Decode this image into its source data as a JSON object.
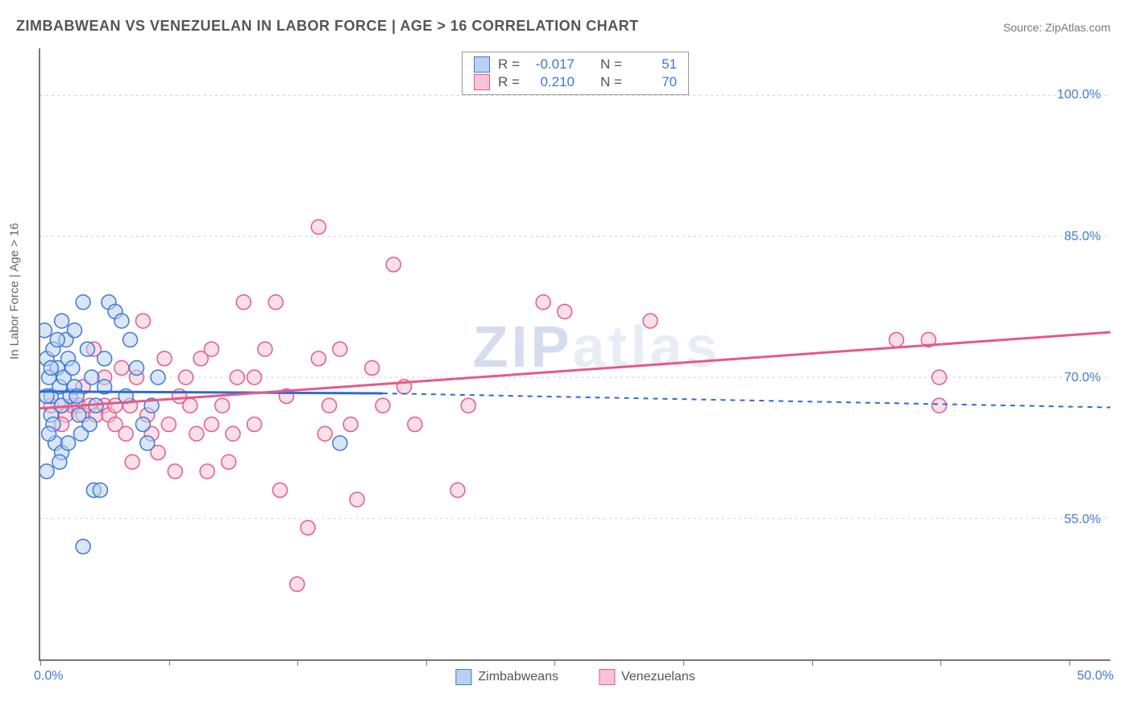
{
  "title": "ZIMBABWEAN VS VENEZUELAN IN LABOR FORCE | AGE > 16 CORRELATION CHART",
  "source_label": "Source: ZipAtlas.com",
  "watermark_main": "ZIP",
  "watermark_sub": "atlas",
  "chart": {
    "type": "scatter",
    "ylabel": "In Labor Force | Age > 16",
    "xlim": [
      0,
      50
    ],
    "ylim": [
      40,
      105
    ],
    "y_gridlines": [
      55,
      70,
      85,
      100
    ],
    "y_tick_labels": [
      "55.0%",
      "70.0%",
      "85.0%",
      "100.0%"
    ],
    "x_tick_positions": [
      0,
      6,
      12,
      18,
      24,
      30,
      36,
      42,
      48
    ],
    "x_left_label": "0.0%",
    "x_right_label": "50.0%",
    "background_color": "#ffffff",
    "grid_color": "#cccccc",
    "marker_radius": 9,
    "marker_stroke_width": 1.5,
    "trend_line_width_solid": 3,
    "trend_line_width_dash": 2,
    "dash_pattern": "6,6",
    "series": [
      {
        "name": "Zimbabweans",
        "fill": "#b9d1f0",
        "stroke": "#3d78d6",
        "fill_opacity": 0.55,
        "R_label": "R =",
        "R_value": "-0.017",
        "N_label": "N =",
        "N_value": "51",
        "trend_color": "#2e6bd1",
        "trend_solid": {
          "x1": 0,
          "y1": 68.5,
          "x2": 16,
          "y2": 68.3
        },
        "trend_dash": {
          "x1": 16,
          "y1": 68.3,
          "x2": 50,
          "y2": 66.8
        },
        "points": [
          {
            "x": 0.2,
            "y": 75
          },
          {
            "x": 0.3,
            "y": 72
          },
          {
            "x": 0.4,
            "y": 70
          },
          {
            "x": 0.5,
            "y": 68
          },
          {
            "x": 0.5,
            "y": 66
          },
          {
            "x": 0.6,
            "y": 65
          },
          {
            "x": 0.7,
            "y": 63
          },
          {
            "x": 0.3,
            "y": 60
          },
          {
            "x": 0.6,
            "y": 73
          },
          {
            "x": 0.8,
            "y": 71
          },
          {
            "x": 0.9,
            "y": 69
          },
          {
            "x": 1.0,
            "y": 67
          },
          {
            "x": 1.2,
            "y": 74
          },
          {
            "x": 1.3,
            "y": 72
          },
          {
            "x": 1.1,
            "y": 70
          },
          {
            "x": 1.4,
            "y": 68
          },
          {
            "x": 1.0,
            "y": 76
          },
          {
            "x": 1.5,
            "y": 71
          },
          {
            "x": 1.6,
            "y": 69
          },
          {
            "x": 1.8,
            "y": 66
          },
          {
            "x": 1.9,
            "y": 64
          },
          {
            "x": 2.0,
            "y": 78
          },
          {
            "x": 2.2,
            "y": 73
          },
          {
            "x": 2.4,
            "y": 70
          },
          {
            "x": 2.6,
            "y": 67
          },
          {
            "x": 2.5,
            "y": 58
          },
          {
            "x": 2.8,
            "y": 58
          },
          {
            "x": 2.0,
            "y": 52
          },
          {
            "x": 3.2,
            "y": 78
          },
          {
            "x": 3.5,
            "y": 77
          },
          {
            "x": 3.8,
            "y": 76
          },
          {
            "x": 3.0,
            "y": 72
          },
          {
            "x": 4.2,
            "y": 74
          },
          {
            "x": 4.5,
            "y": 71
          },
          {
            "x": 4.0,
            "y": 68
          },
          {
            "x": 4.8,
            "y": 65
          },
          {
            "x": 5.0,
            "y": 63
          },
          {
            "x": 5.5,
            "y": 70
          },
          {
            "x": 5.2,
            "y": 67
          },
          {
            "x": 14.0,
            "y": 63
          },
          {
            "x": 0.8,
            "y": 74
          },
          {
            "x": 1.6,
            "y": 75
          },
          {
            "x": 1.0,
            "y": 62
          },
          {
            "x": 0.4,
            "y": 64
          },
          {
            "x": 0.3,
            "y": 68
          },
          {
            "x": 0.5,
            "y": 71
          },
          {
            "x": 1.3,
            "y": 63
          },
          {
            "x": 1.7,
            "y": 68
          },
          {
            "x": 2.3,
            "y": 65
          },
          {
            "x": 3.0,
            "y": 69
          },
          {
            "x": 0.9,
            "y": 61
          }
        ]
      },
      {
        "name": "Venezuelans",
        "fill": "#f6c4d3",
        "stroke": "#e45a8a",
        "fill_opacity": 0.55,
        "R_label": "R =",
        "R_value": "0.210",
        "N_label": "N =",
        "N_value": "70",
        "trend_color": "#e45a8a",
        "trend_solid": {
          "x1": 0,
          "y1": 66.7,
          "x2": 50,
          "y2": 74.8
        },
        "trend_dash": null,
        "points": [
          {
            "x": 0.5,
            "y": 67
          },
          {
            "x": 1.0,
            "y": 67
          },
          {
            "x": 1.2,
            "y": 66
          },
          {
            "x": 1.5,
            "y": 67
          },
          {
            "x": 1.8,
            "y": 67
          },
          {
            "x": 2.0,
            "y": 66
          },
          {
            "x": 2.3,
            "y": 67
          },
          {
            "x": 2.6,
            "y": 66
          },
          {
            "x": 3.0,
            "y": 67
          },
          {
            "x": 3.2,
            "y": 66
          },
          {
            "x": 3.5,
            "y": 67
          },
          {
            "x": 3.0,
            "y": 70
          },
          {
            "x": 3.5,
            "y": 65
          },
          {
            "x": 4.0,
            "y": 64
          },
          {
            "x": 4.2,
            "y": 67
          },
          {
            "x": 4.5,
            "y": 70
          },
          {
            "x": 4.8,
            "y": 76
          },
          {
            "x": 5.0,
            "y": 66
          },
          {
            "x": 5.2,
            "y": 64
          },
          {
            "x": 5.5,
            "y": 62
          },
          {
            "x": 5.8,
            "y": 72
          },
          {
            "x": 6.0,
            "y": 65
          },
          {
            "x": 6.3,
            "y": 60
          },
          {
            "x": 6.5,
            "y": 68
          },
          {
            "x": 7.0,
            "y": 67
          },
          {
            "x": 7.3,
            "y": 64
          },
          {
            "x": 7.5,
            "y": 72
          },
          {
            "x": 8.0,
            "y": 73
          },
          {
            "x": 8.0,
            "y": 65
          },
          {
            "x": 8.5,
            "y": 67
          },
          {
            "x": 8.8,
            "y": 61
          },
          {
            "x": 9.0,
            "y": 64
          },
          {
            "x": 9.5,
            "y": 78
          },
          {
            "x": 10.0,
            "y": 70
          },
          {
            "x": 10.0,
            "y": 65
          },
          {
            "x": 10.5,
            "y": 73
          },
          {
            "x": 11.0,
            "y": 78
          },
          {
            "x": 11.2,
            "y": 58
          },
          {
            "x": 11.5,
            "y": 68
          },
          {
            "x": 12.0,
            "y": 48
          },
          {
            "x": 12.5,
            "y": 54
          },
          {
            "x": 13.0,
            "y": 86
          },
          {
            "x": 13.0,
            "y": 72
          },
          {
            "x": 13.5,
            "y": 67
          },
          {
            "x": 14.0,
            "y": 73
          },
          {
            "x": 14.5,
            "y": 65
          },
          {
            "x": 14.8,
            "y": 57
          },
          {
            "x": 15.5,
            "y": 71
          },
          {
            "x": 16.5,
            "y": 82
          },
          {
            "x": 17.0,
            "y": 69
          },
          {
            "x": 17.5,
            "y": 65
          },
          {
            "x": 19.5,
            "y": 58
          },
          {
            "x": 20.0,
            "y": 67
          },
          {
            "x": 23.5,
            "y": 78
          },
          {
            "x": 24.5,
            "y": 77
          },
          {
            "x": 28.5,
            "y": 76
          },
          {
            "x": 40.0,
            "y": 74
          },
          {
            "x": 41.5,
            "y": 74
          },
          {
            "x": 42.0,
            "y": 70
          },
          {
            "x": 42.0,
            "y": 67
          },
          {
            "x": 2.5,
            "y": 73
          },
          {
            "x": 6.8,
            "y": 70
          },
          {
            "x": 7.8,
            "y": 60
          },
          {
            "x": 3.8,
            "y": 71
          },
          {
            "x": 4.3,
            "y": 61
          },
          {
            "x": 9.2,
            "y": 70
          },
          {
            "x": 1.0,
            "y": 65
          },
          {
            "x": 2.0,
            "y": 69
          },
          {
            "x": 13.3,
            "y": 64
          },
          {
            "x": 16.0,
            "y": 67
          }
        ]
      }
    ],
    "legend_bottom": [
      {
        "label": "Zimbabweans",
        "fill": "#b9d1f0",
        "stroke": "#3d78d6"
      },
      {
        "label": "Venezuelans",
        "fill": "#f6c4d3",
        "stroke": "#e45a8a"
      }
    ]
  }
}
